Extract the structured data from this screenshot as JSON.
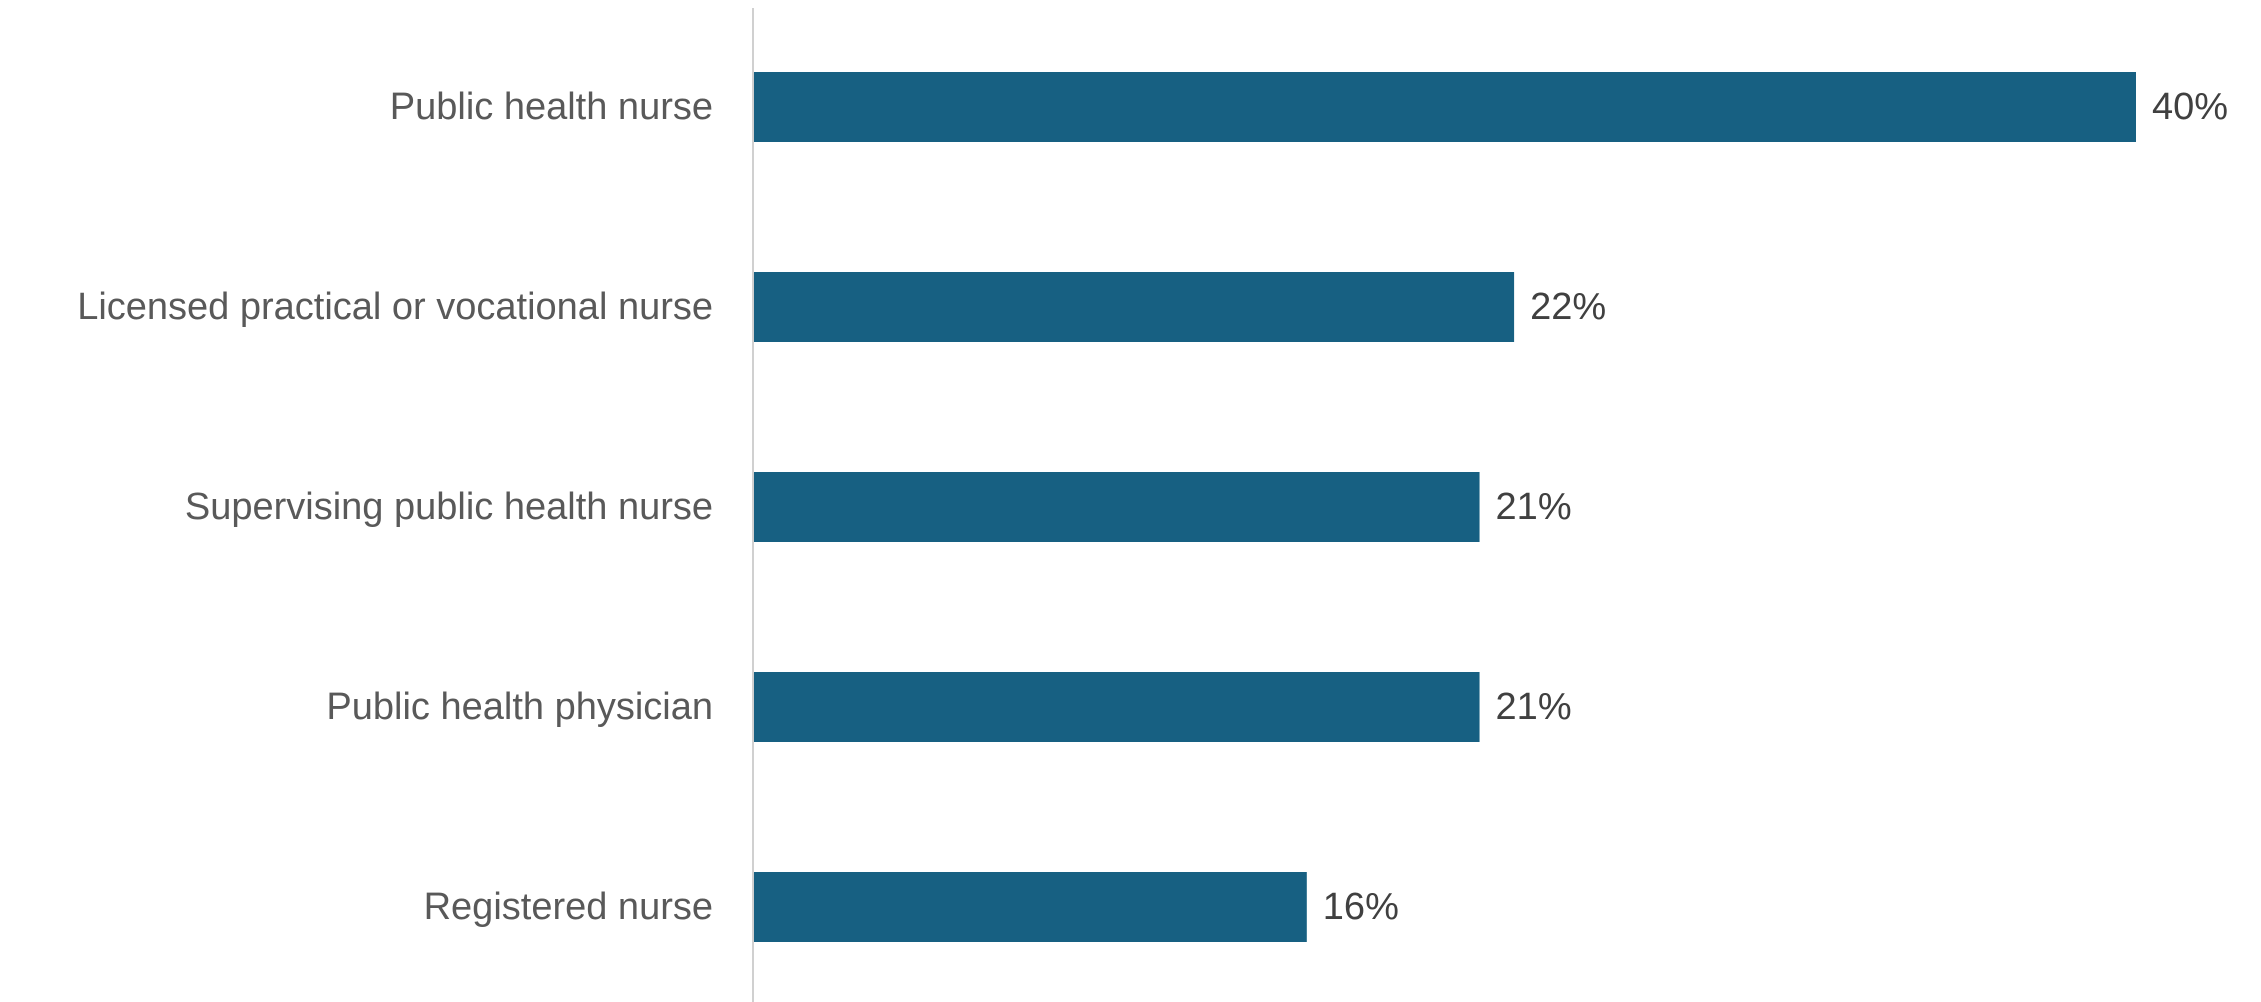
{
  "chart_data": {
    "type": "bar",
    "orientation": "horizontal",
    "categories": [
      "Public health nurse",
      "Licensed practical or vocational nurse",
      "Supervising public health nurse",
      "Public health physician",
      "Registered nurse"
    ],
    "values": [
      40,
      22,
      21,
      21,
      16
    ],
    "value_labels": [
      "40%",
      "22%",
      "21%",
      "21%",
      "16%"
    ],
    "title": "",
    "xlabel": "",
    "ylabel": "",
    "xlim": [
      0,
      40
    ],
    "grid": false,
    "legend": "none",
    "bar_color": "#176082",
    "axis_color": "#d0d0d0"
  }
}
